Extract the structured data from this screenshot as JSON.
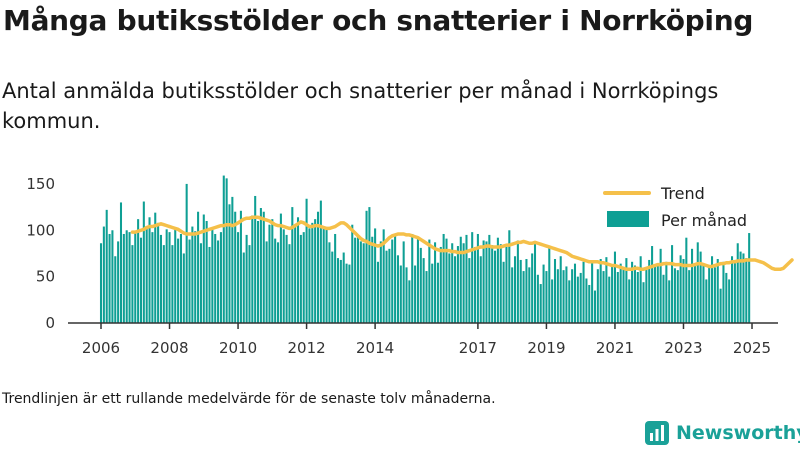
{
  "title": "Många butiksstölder och snatterier i Norrköping",
  "subtitle": "Antal anmälda butiksstölder och snatterier per månad i Norrköpings kommun.",
  "footnote": "Trendlinjen är ett rullande medelvärde för de senaste tolv månaderna.",
  "brand": {
    "name": "Newsworthy"
  },
  "colors": {
    "bars": "#0e9f94",
    "trend": "#f5c04a",
    "axis": "#333333",
    "brand": "#1aa198"
  },
  "chart_data": {
    "type": "bar",
    "title": "",
    "xlabel": "",
    "ylabel": "",
    "x_range": [
      "2006-01",
      "2025-08"
    ],
    "ylim": [
      0,
      165
    ],
    "yticks": [
      0,
      50,
      100,
      150
    ],
    "xticks": [
      "2006",
      "2008",
      "2010",
      "2012",
      "2014",
      "2017",
      "2019",
      "2021",
      "2023",
      "2025"
    ],
    "grid": false,
    "legend_position": "top-right",
    "series": [
      {
        "name": "Per månad",
        "type": "bar",
        "start": "2006-01",
        "values": [
          86,
          104,
          122,
          96,
          100,
          72,
          88,
          130,
          96,
          100,
          98,
          84,
          99,
          112,
          92,
          131,
          104,
          114,
          98,
          119,
          108,
          95,
          84,
          101,
          98,
          84,
          102,
          91,
          96,
          75,
          150,
          90,
          104,
          99,
          120,
          86,
          117,
          110,
          82,
          102,
          96,
          89,
          98,
          159,
          156,
          128,
          136,
          120,
          98,
          121,
          76,
          95,
          84,
          116,
          137,
          110,
          124,
          120,
          88,
          106,
          112,
          91,
          87,
          118,
          101,
          95,
          85,
          125,
          106,
          114,
          95,
          98,
          134,
          102,
          108,
          112,
          120,
          132,
          102,
          103,
          87,
          77,
          96,
          70,
          68,
          76,
          64,
          63,
          106,
          92,
          95,
          88,
          86,
          121,
          125,
          93,
          102,
          66,
          88,
          101,
          78,
          80,
          90,
          94,
          73,
          62,
          88,
          60,
          46,
          96,
          62,
          92,
          81,
          70,
          56,
          90,
          64,
          87,
          65,
          82,
          96,
          91,
          75,
          86,
          72,
          83,
          93,
          86,
          95,
          70,
          98,
          82,
          96,
          72,
          89,
          88,
          95,
          84,
          78,
          92,
          85,
          66,
          82,
          100,
          60,
          72,
          89,
          68,
          56,
          69,
          60,
          75,
          88,
          52,
          42,
          63,
          56,
          83,
          47,
          69,
          58,
          72,
          57,
          61,
          46,
          58,
          64,
          50,
          54,
          66,
          48,
          41,
          66,
          35,
          58,
          69,
          56,
          71,
          50,
          61,
          77,
          55,
          64,
          59,
          70,
          47,
          66,
          62,
          55,
          72,
          44,
          58,
          68,
          83,
          61,
          62,
          80,
          52,
          66,
          46,
          84,
          59,
          57,
          73,
          69,
          92,
          57,
          80,
          64,
          87,
          77,
          62,
          47,
          61,
          72,
          60,
          69,
          37,
          66,
          54,
          47,
          72,
          68,
          86,
          77,
          75,
          70,
          97
        ]
      },
      {
        "name": "Trend",
        "type": "line",
        "start": "2006-12",
        "values": [
          98,
          98,
          99,
          100,
          101,
          103,
          104,
          104,
          105,
          106,
          107,
          106,
          105,
          104,
          103,
          102,
          101,
          99,
          97,
          96,
          96,
          96,
          96,
          97,
          98,
          99,
          100,
          101,
          102,
          103,
          104,
          105,
          105,
          106,
          106,
          105,
          106,
          108,
          110,
          112,
          113,
          113,
          114,
          114,
          114,
          113,
          112,
          111,
          110,
          108,
          106,
          105,
          105,
          104,
          103,
          102,
          103,
          105,
          107,
          109,
          108,
          106,
          104,
          104,
          105,
          105,
          104,
          103,
          102,
          102,
          103,
          104,
          106,
          108,
          108,
          106,
          103,
          100,
          97,
          94,
          91,
          89,
          88,
          86,
          85,
          84,
          83,
          84,
          86,
          89,
          92,
          94,
          95,
          96,
          96,
          96,
          95,
          95,
          94,
          93,
          92,
          90,
          88,
          86,
          84,
          82,
          80,
          79,
          78,
          78,
          78,
          78,
          77,
          77,
          76,
          76,
          76,
          77,
          78,
          79,
          80,
          81,
          82,
          82,
          83,
          83,
          82,
          82,
          82,
          82,
          83,
          84,
          84,
          85,
          86,
          87,
          87,
          88,
          87,
          86,
          86,
          87,
          86,
          85,
          84,
          83,
          82,
          81,
          80,
          79,
          78,
          77,
          76,
          74,
          72,
          71,
          70,
          69,
          68,
          67,
          66,
          66,
          66,
          66,
          65,
          65,
          64,
          63,
          62,
          62,
          61,
          60,
          59,
          58,
          58,
          58,
          59,
          59,
          58,
          58,
          59,
          60,
          61,
          62,
          63,
          63,
          64,
          64,
          64,
          64,
          63,
          63,
          63,
          62,
          62,
          62,
          62,
          63,
          64,
          64,
          63,
          62,
          61,
          61,
          62,
          63,
          64,
          64,
          65,
          65,
          66,
          66,
          67,
          67,
          67,
          68,
          68,
          68,
          68,
          67,
          66,
          65,
          63,
          61,
          59,
          58,
          58,
          58,
          59,
          62,
          65,
          68
        ]
      }
    ]
  }
}
